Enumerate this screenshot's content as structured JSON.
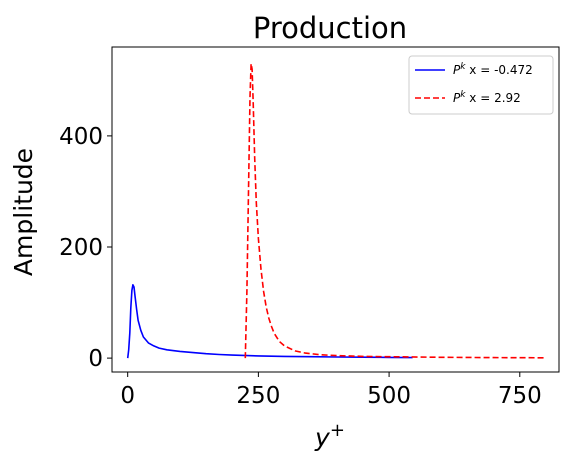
{
  "chart_data": {
    "type": "line",
    "title": "Production",
    "xlabel": "y",
    "xlabel_sup": "+",
    "ylabel": "Amplitude",
    "xlim": [
      -30,
      825
    ],
    "ylim": [
      -25,
      560
    ],
    "xticks": [
      0,
      250,
      500,
      750
    ],
    "yticks": [
      0,
      200,
      400
    ],
    "xtick_labels": [
      "0",
      "250",
      "500",
      "750"
    ],
    "ytick_labels": [
      "0",
      "200",
      "400"
    ],
    "grid": false,
    "legend": {
      "position": "top-right",
      "entries": [
        {
          "prefix": "P",
          "sup": "k",
          "suffix": " x = -0.472"
        },
        {
          "prefix": "P",
          "sup": "k",
          "suffix": " x = 2.92"
        }
      ]
    },
    "series": [
      {
        "color": "#0000ff",
        "style": "solid",
        "x": [
          0,
          2,
          4,
          6,
          8,
          10,
          12,
          14,
          17,
          20,
          25,
          30,
          40,
          50,
          60,
          75,
          100,
          125,
          150,
          175,
          200,
          250,
          300,
          350,
          400,
          450,
          500,
          545
        ],
        "y": [
          0,
          15,
          45,
          90,
          122,
          132,
          128,
          112,
          88,
          68,
          50,
          38,
          27,
          22,
          18,
          15,
          12,
          10,
          8,
          6.5,
          5.5,
          4,
          3,
          2.5,
          2,
          1.6,
          1.3,
          1
        ]
      },
      {
        "color": "#ff0000",
        "style": "dashed",
        "x": [
          225,
          228,
          231,
          234,
          236,
          238,
          240,
          243,
          246,
          250,
          255,
          260,
          265,
          270,
          275,
          280,
          290,
          300,
          320,
          340,
          370,
          400,
          450,
          500,
          600,
          700,
          800
        ],
        "y": [
          0,
          120,
          300,
          470,
          530,
          520,
          460,
          360,
          280,
          215,
          160,
          120,
          92,
          72,
          57,
          45,
          30,
          22,
          13,
          9,
          6,
          4.5,
          3,
          2.5,
          1.5,
          1,
          0.5
        ]
      }
    ]
  }
}
